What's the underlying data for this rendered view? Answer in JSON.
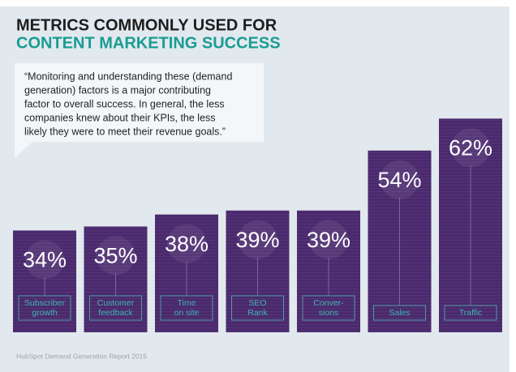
{
  "chart_data": {
    "type": "bar",
    "title": [
      "METRICS COMMONLY USED FOR",
      "CONTENT MARKETING SUCCESS"
    ],
    "annotation": [
      "“Monitoring and understanding these (demand",
      "generation) factors is a major contributing",
      "factor to overall success. In general, the less",
      "companies knew about their KPIs, the less",
      "likely they were to meet their revenue goals.”"
    ],
    "categories": [
      [
        "Subscriber",
        "growth"
      ],
      [
        "Customer",
        "feedback"
      ],
      [
        "Time",
        "on site"
      ],
      [
        "SEO",
        "Rank"
      ],
      [
        "Conver-",
        "sions"
      ],
      [
        "Sales"
      ],
      [
        "Traffic"
      ]
    ],
    "values": [
      34,
      35,
      38,
      39,
      39,
      54,
      62
    ],
    "value_labels": [
      "34%",
      "35%",
      "38%",
      "39%",
      "39%",
      "54%",
      "62%"
    ],
    "color": "#4a2a6c",
    "source": "HubSpot Demand Generation Report 2015"
  }
}
